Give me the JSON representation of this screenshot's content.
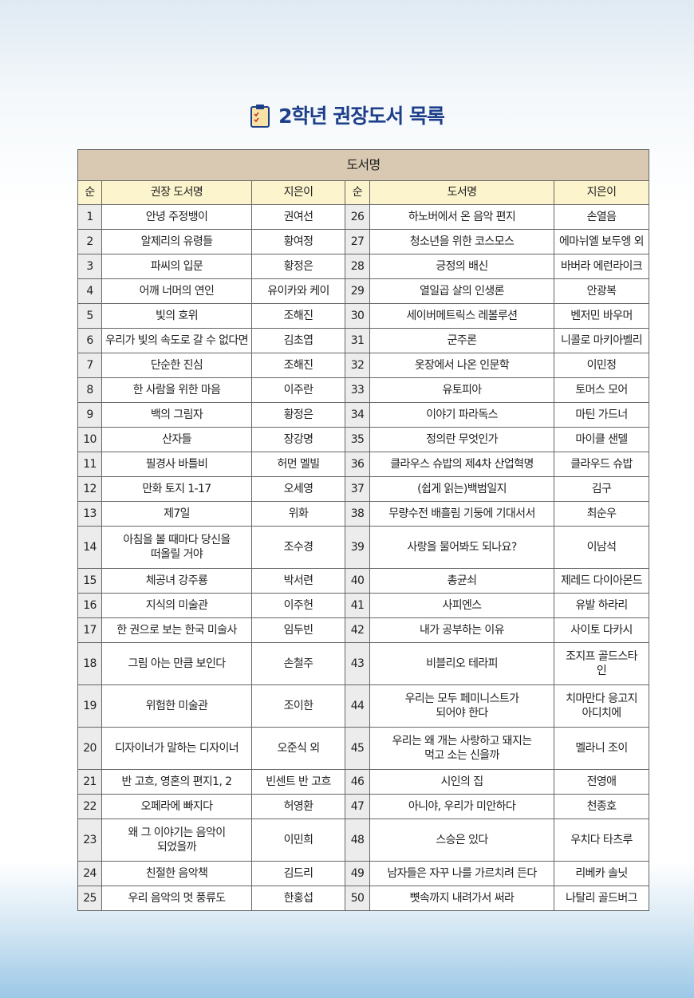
{
  "header": {
    "title": "2학년 권장도서 목록"
  },
  "table": {
    "group_header": "도서명",
    "columns": [
      "순",
      "권장 도서명",
      "지은이",
      "순",
      "도서명",
      "지은이"
    ],
    "rows": [
      [
        "1",
        "안녕 주정뱅이",
        "권여선",
        "26",
        "하노버에서 온 음악 편지",
        "손열음"
      ],
      [
        "2",
        "알제리의 유령들",
        "황여정",
        "27",
        "청소년을 위한 코스모스",
        "에마뉘엘 보두엥 외"
      ],
      [
        "3",
        "파씨의 입문",
        "황정은",
        "28",
        "긍정의 배신",
        "바버라 에런라이크"
      ],
      [
        "4",
        "어깨 너머의 연인",
        "유이카와 케이",
        "29",
        "열일곱 살의 인생론",
        "안광복"
      ],
      [
        "5",
        "빛의 호위",
        "조해진",
        "30",
        "세이버메트릭스 레볼루션",
        "벤저민 바우머"
      ],
      [
        "6",
        "우리가 빛의 속도로 갈 수 없다면",
        "김초엽",
        "31",
        "군주론",
        "니콜로 마키아벨리"
      ],
      [
        "7",
        "단순한 진심",
        "조해진",
        "32",
        "옷장에서 나온 인문학",
        "이민정"
      ],
      [
        "8",
        "한 사람을 위한 마음",
        "이주란",
        "33",
        "유토피아",
        "토머스 모어"
      ],
      [
        "9",
        "백의 그림자",
        "황정은",
        "34",
        "이야기 파라독스",
        "마틴 가드너"
      ],
      [
        "10",
        "산자들",
        "장강명",
        "35",
        "정의란 무엇인가",
        "마이클 샌델"
      ],
      [
        "11",
        "필경사 바틀비",
        "허먼 멜빌",
        "36",
        "클라우스 슈밥의 제4차 산업혁명",
        "클라우드 슈밥"
      ],
      [
        "12",
        "만화 토지 1-17",
        "오세영",
        "37",
        "(쉽게 읽는)백범일지",
        "김구"
      ],
      [
        "13",
        "제7일",
        "위화",
        "38",
        "무량수전 배흘림 기둥에 기대서서",
        "최순우"
      ],
      [
        "14",
        "아침을 볼 때마다 당신을\n떠올릴 거야",
        "조수경",
        "39",
        "사랑을 물어봐도 되나요?",
        "이남석"
      ],
      [
        "15",
        "체공녀 강주룡",
        "박서련",
        "40",
        "총균쇠",
        "제레드 다이아몬드"
      ],
      [
        "16",
        "지식의 미술관",
        "이주헌",
        "41",
        "사피엔스",
        "유발 하라리"
      ],
      [
        "17",
        "한 권으로 보는 한국 미술사",
        "임두빈",
        "42",
        "내가 공부하는 이유",
        "사이토 다카시"
      ],
      [
        "18",
        "그림 아는 만큼 보인다",
        "손철주",
        "43",
        "비블리오 테라피",
        "조지프 골드스타\n인"
      ],
      [
        "19",
        "위험한 미술관",
        "조이한",
        "44",
        "우리는 모두 페미니스트가\n되어야 한다",
        "치마만다 응고지\n아디치에"
      ],
      [
        "20",
        "디자이너가 말하는 디자이너",
        "오준식 외",
        "45",
        "우리는 왜 개는 사랑하고 돼지는\n먹고 소는 신을까",
        "멜라니 조이"
      ],
      [
        "21",
        "반 고흐, 영혼의 편지1, 2",
        "빈센트 반 고흐",
        "46",
        "시인의 집",
        "전영애"
      ],
      [
        "22",
        "오페라에 빠지다",
        "허영환",
        "47",
        "아니야, 우리가 미안하다",
        "천종호"
      ],
      [
        "23",
        "왜 그 이야기는 음악이\n되었을까",
        "이민희",
        "48",
        "스승은 있다",
        "우치다 타츠루"
      ],
      [
        "24",
        "친절한 음악책",
        "김드리",
        "49",
        "남자들은 자꾸 나를 가르치려 든다",
        "리베카 솔닛"
      ],
      [
        "25",
        "우리 음악의 멋 풍류도",
        "한홍섭",
        "50",
        "뼛속까지 내려가서 써라",
        "나탈리 골드버그"
      ]
    ]
  }
}
